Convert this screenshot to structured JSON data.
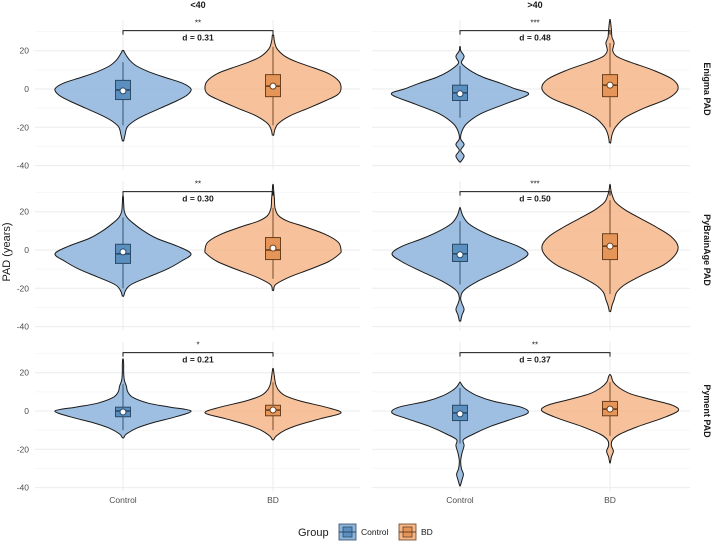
{
  "chart_data": {
    "type": "violin",
    "ylabel": "PAD (years)",
    "xlabel": "",
    "categories": [
      "Control",
      "BD"
    ],
    "ylim": [
      -42,
      36
    ],
    "yticks": [
      20,
      0,
      -20,
      -40
    ],
    "grid": true,
    "columns": [
      "<40",
      ">40"
    ],
    "rows": [
      "Enigma PAD",
      "PyBrainAge PAD",
      "Pyment PAD"
    ],
    "legend": {
      "title": "Group",
      "position": "bottom",
      "items": [
        {
          "label": "Control",
          "color": "#8db4dc"
        },
        {
          "label": "BD",
          "color": "#f4b68a"
        }
      ]
    },
    "colors": {
      "Control": "#8db4dc",
      "BD": "#f4b68a",
      "Control_box": "#5b8fbf",
      "BD_box": "#e59558"
    },
    "panels": [
      {
        "row": "Enigma PAD",
        "column": "<40",
        "significance": "**",
        "effect": "d = 0.31",
        "groups": [
          {
            "name": "Control",
            "min": -27,
            "max": 20,
            "q1": -5.5,
            "median": -0.5,
            "q3": 4.5,
            "mean": -1,
            "whisker_low": -19,
            "whisker_high": 14,
            "density": [
              [
                -27,
                0.01
              ],
              [
                -24,
                0.03
              ],
              [
                -20,
                0.06
              ],
              [
                -17,
                0.15
              ],
              [
                -14,
                0.3
              ],
              [
                -10,
                0.55
              ],
              [
                -6,
                0.8
              ],
              [
                -3,
                0.95
              ],
              [
                0,
                1.0
              ],
              [
                3,
                0.88
              ],
              [
                6,
                0.62
              ],
              [
                9,
                0.38
              ],
              [
                12,
                0.2
              ],
              [
                15,
                0.1
              ],
              [
                18,
                0.04
              ],
              [
                20,
                0.01
              ]
            ]
          },
          {
            "name": "BD",
            "min": -24,
            "max": 28,
            "q1": -4,
            "median": 1.5,
            "q3": 7.5,
            "mean": 1.5,
            "whisker_low": -19,
            "whisker_high": 22,
            "density": [
              [
                -24,
                0.01
              ],
              [
                -21,
                0.03
              ],
              [
                -18,
                0.08
              ],
              [
                -14,
                0.25
              ],
              [
                -10,
                0.52
              ],
              [
                -6,
                0.78
              ],
              [
                -3,
                0.95
              ],
              [
                0,
                1.0
              ],
              [
                4,
                0.97
              ],
              [
                8,
                0.82
              ],
              [
                11,
                0.6
              ],
              [
                14,
                0.36
              ],
              [
                17,
                0.18
              ],
              [
                21,
                0.06
              ],
              [
                25,
                0.02
              ],
              [
                28,
                0.01
              ]
            ]
          }
        ]
      },
      {
        "row": "Enigma PAD",
        "column": ">40",
        "significance": "***",
        "effect": "d = 0.48",
        "groups": [
          {
            "name": "Control",
            "min": -38,
            "max": 22,
            "q1": -6,
            "median": -2,
            "q3": 2,
            "mean": -2.5,
            "whisker_low": -15,
            "whisker_high": 12,
            "density": [
              [
                -38,
                0.01
              ],
              [
                -35,
                0.06
              ],
              [
                -32,
                0.01
              ],
              [
                -29,
                0.06
              ],
              [
                -26,
                0.01
              ],
              [
                -22,
                0.03
              ],
              [
                -18,
                0.1
              ],
              [
                -13,
                0.3
              ],
              [
                -8,
                0.65
              ],
              [
                -4,
                0.95
              ],
              [
                -2,
                1.0
              ],
              [
                0,
                0.82
              ],
              [
                3,
                0.6
              ],
              [
                6,
                0.35
              ],
              [
                9,
                0.18
              ],
              [
                12,
                0.06
              ],
              [
                14,
                0.02
              ],
              [
                17,
                0.06
              ],
              [
                20,
                0.01
              ],
              [
                22,
                0.005
              ]
            ]
          },
          {
            "name": "BD",
            "min": -28,
            "max": 36,
            "q1": -4,
            "median": 2,
            "q3": 7.5,
            "mean": 2,
            "whisker_low": -20,
            "whisker_high": 24,
            "density": [
              [
                -28,
                0.01
              ],
              [
                -24,
                0.03
              ],
              [
                -20,
                0.08
              ],
              [
                -15,
                0.22
              ],
              [
                -10,
                0.5
              ],
              [
                -5,
                0.85
              ],
              [
                0,
                1.0
              ],
              [
                5,
                0.92
              ],
              [
                10,
                0.62
              ],
              [
                14,
                0.3
              ],
              [
                17,
                0.1
              ],
              [
                20,
                0.04
              ],
              [
                24,
                0.06
              ],
              [
                27,
                0.03
              ],
              [
                31,
                0.02
              ],
              [
                36,
                0.005
              ]
            ]
          }
        ]
      },
      {
        "row": "PyBrainAge PAD",
        "column": "<40",
        "significance": "**",
        "effect": "d = 0.30",
        "groups": [
          {
            "name": "Control",
            "min": -24,
            "max": 28,
            "q1": -7,
            "median": -2,
            "q3": 3,
            "mean": -1,
            "whisker_low": -20,
            "whisker_high": 17,
            "density": [
              [
                -24,
                0.01
              ],
              [
                -21,
                0.04
              ],
              [
                -18,
                0.12
              ],
              [
                -14,
                0.38
              ],
              [
                -10,
                0.65
              ],
              [
                -6,
                0.85
              ],
              [
                -2,
                1.0
              ],
              [
                2,
                0.8
              ],
              [
                6,
                0.5
              ],
              [
                10,
                0.3
              ],
              [
                14,
                0.15
              ],
              [
                17,
                0.06
              ],
              [
                20,
                0.02
              ],
              [
                24,
                0.01
              ],
              [
                28,
                0.005
              ]
            ]
          },
          {
            "name": "BD",
            "min": -21,
            "max": 34,
            "q1": -5,
            "median": 0,
            "q3": 6.5,
            "mean": 1,
            "whisker_low": -15,
            "whisker_high": 22,
            "density": [
              [
                -21,
                0.01
              ],
              [
                -18,
                0.04
              ],
              [
                -14,
                0.25
              ],
              [
                -10,
                0.55
              ],
              [
                -6,
                0.82
              ],
              [
                -2,
                0.98
              ],
              [
                0,
                1.0
              ],
              [
                4,
                0.96
              ],
              [
                8,
                0.78
              ],
              [
                12,
                0.48
              ],
              [
                15,
                0.22
              ],
              [
                18,
                0.08
              ],
              [
                22,
                0.03
              ],
              [
                27,
                0.02
              ],
              [
                31,
                0.01
              ],
              [
                34,
                0.005
              ]
            ]
          }
        ]
      },
      {
        "row": "PyBrainAge PAD",
        "column": ">40",
        "significance": "***",
        "effect": "d = 0.50",
        "groups": [
          {
            "name": "Control",
            "min": -37,
            "max": 22,
            "q1": -6,
            "median": -2,
            "q3": 3,
            "mean": -2.5,
            "whisker_low": -18,
            "whisker_high": 15,
            "density": [
              [
                -37,
                0.01
              ],
              [
                -34,
                0.03
              ],
              [
                -31,
                0.06
              ],
              [
                -28,
                0.03
              ],
              [
                -25,
                0.01
              ],
              [
                -21,
                0.06
              ],
              [
                -16,
                0.28
              ],
              [
                -11,
                0.58
              ],
              [
                -6,
                0.86
              ],
              [
                -2,
                1.0
              ],
              [
                2,
                0.85
              ],
              [
                6,
                0.55
              ],
              [
                10,
                0.3
              ],
              [
                14,
                0.12
              ],
              [
                18,
                0.04
              ],
              [
                22,
                0.005
              ]
            ]
          },
          {
            "name": "BD",
            "min": -32,
            "max": 34,
            "q1": -5,
            "median": 2,
            "q3": 8.5,
            "mean": 2,
            "whisker_low": -23,
            "whisker_high": 26,
            "density": [
              [
                -32,
                0.01
              ],
              [
                -29,
                0.03
              ],
              [
                -26,
                0.06
              ],
              [
                -22,
                0.1
              ],
              [
                -18,
                0.22
              ],
              [
                -13,
                0.48
              ],
              [
                -8,
                0.78
              ],
              [
                -3,
                0.95
              ],
              [
                2,
                1.0
              ],
              [
                7,
                0.9
              ],
              [
                12,
                0.68
              ],
              [
                17,
                0.42
              ],
              [
                21,
                0.22
              ],
              [
                25,
                0.08
              ],
              [
                29,
                0.03
              ],
              [
                32,
                0.01
              ],
              [
                34,
                0.005
              ]
            ]
          }
        ]
      },
      {
        "row": "Pyment PAD",
        "column": "<40",
        "significance": "*",
        "effect": "d = 0.21",
        "groups": [
          {
            "name": "Control",
            "min": -14,
            "max": 27,
            "q1": -3,
            "median": 0,
            "q3": 2,
            "mean": -0.5,
            "whisker_low": -10,
            "whisker_high": 14,
            "density": [
              [
                -14,
                0.01
              ],
              [
                -12,
                0.05
              ],
              [
                -9,
                0.2
              ],
              [
                -6,
                0.45
              ],
              [
                -3,
                0.78
              ],
              [
                0,
                1.0
              ],
              [
                2,
                0.7
              ],
              [
                4,
                0.38
              ],
              [
                7,
                0.15
              ],
              [
                10,
                0.07
              ],
              [
                13,
                0.05
              ],
              [
                16,
                0.02
              ],
              [
                20,
                0.01
              ],
              [
                24,
                0.01
              ],
              [
                27,
                0.005
              ]
            ]
          },
          {
            "name": "BD",
            "min": -15,
            "max": 22,
            "q1": -2.5,
            "median": 0.5,
            "q3": 3,
            "mean": 0.5,
            "whisker_low": -10,
            "whisker_high": 15,
            "density": [
              [
                -15,
                0.01
              ],
              [
                -13,
                0.05
              ],
              [
                -10,
                0.18
              ],
              [
                -7,
                0.4
              ],
              [
                -4,
                0.7
              ],
              [
                -1,
                1.0
              ],
              [
                2,
                0.78
              ],
              [
                5,
                0.42
              ],
              [
                8,
                0.18
              ],
              [
                11,
                0.08
              ],
              [
                14,
                0.04
              ],
              [
                18,
                0.02
              ],
              [
                22,
                0.005
              ]
            ]
          }
        ]
      },
      {
        "row": "Pyment PAD",
        "column": ">40",
        "significance": "**",
        "effect": "d = 0.37",
        "groups": [
          {
            "name": "Control",
            "min": -39,
            "max": 15,
            "q1": -5,
            "median": -1,
            "q3": 3,
            "mean": -1.5,
            "whisker_low": -17,
            "whisker_high": 12,
            "density": [
              [
                -39,
                0.005
              ],
              [
                -36,
                0.03
              ],
              [
                -33,
                0.05
              ],
              [
                -30,
                0.02
              ],
              [
                -26,
                0.01
              ],
              [
                -22,
                0.03
              ],
              [
                -18,
                0.06
              ],
              [
                -15,
                0.05
              ],
              [
                -12,
                0.2
              ],
              [
                -8,
                0.45
              ],
              [
                -4,
                0.78
              ],
              [
                -1,
                1.0
              ],
              [
                2,
                0.9
              ],
              [
                5,
                0.5
              ],
              [
                8,
                0.25
              ],
              [
                11,
                0.1
              ],
              [
                13,
                0.04
              ],
              [
                15,
                0.005
              ]
            ]
          },
          {
            "name": "BD",
            "min": -27,
            "max": 19,
            "q1": -2.5,
            "median": 1,
            "q3": 5,
            "mean": 1,
            "whisker_low": -13,
            "whisker_high": 15,
            "density": [
              [
                -27,
                0.005
              ],
              [
                -24,
                0.02
              ],
              [
                -21,
                0.05
              ],
              [
                -18,
                0.02
              ],
              [
                -15,
                0.04
              ],
              [
                -12,
                0.15
              ],
              [
                -8,
                0.42
              ],
              [
                -4,
                0.75
              ],
              [
                0,
                1.0
              ],
              [
                3,
                0.92
              ],
              [
                6,
                0.6
              ],
              [
                9,
                0.3
              ],
              [
                12,
                0.14
              ],
              [
                15,
                0.05
              ],
              [
                18,
                0.02
              ],
              [
                19,
                0.005
              ]
            ]
          }
        ]
      }
    ]
  }
}
